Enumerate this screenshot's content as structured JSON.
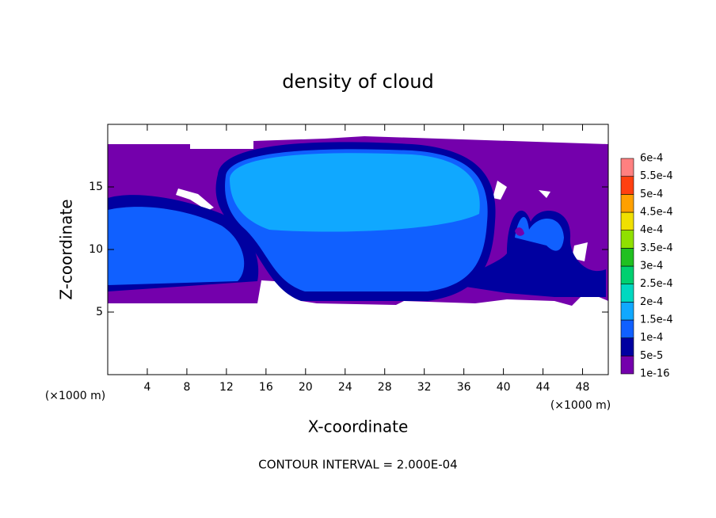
{
  "chart_data": {
    "type": "contour",
    "title": "density of cloud",
    "xlabel": "X-coordinate",
    "ylabel": "Z-coordinate",
    "x_unit_label": "(×1000 m)",
    "xlim": [
      0,
      50.6
    ],
    "ylim": [
      0,
      20
    ],
    "xticks": [
      4,
      8,
      12,
      16,
      20,
      24,
      28,
      32,
      36,
      40,
      44,
      48
    ],
    "yticks": [
      5,
      10,
      15
    ],
    "colorbar": {
      "levels": [
        {
          "value": 1e-16,
          "label": "1e-16"
        },
        {
          "value": 5e-05,
          "label": "5e-5"
        },
        {
          "value": 0.0001,
          "label": "1e-4"
        },
        {
          "value": 0.00015,
          "label": "1.5e-4"
        },
        {
          "value": 0.0002,
          "label": "2e-4"
        },
        {
          "value": 0.00025,
          "label": "2.5e-4"
        },
        {
          "value": 0.0003,
          "label": "3e-4"
        },
        {
          "value": 0.00035,
          "label": "3.5e-4"
        },
        {
          "value": 0.0004,
          "label": "4e-4"
        },
        {
          "value": 0.00045,
          "label": "4.5e-4"
        },
        {
          "value": 0.0005,
          "label": "5e-4"
        },
        {
          "value": 0.00055,
          "label": "5.5e-4"
        },
        {
          "value": 0.0006,
          "label": "6e-4"
        }
      ],
      "colors": [
        "#7400ac",
        "#0000a0",
        "#1060ff",
        "#10a8ff",
        "#00d8c0",
        "#00d070",
        "#20c020",
        "#90e000",
        "#f0e000",
        "#ffa000",
        "#ff4010",
        "#ff8080"
      ]
    },
    "annotation": "CONTOUR INTERVAL = 2.000E-04"
  }
}
